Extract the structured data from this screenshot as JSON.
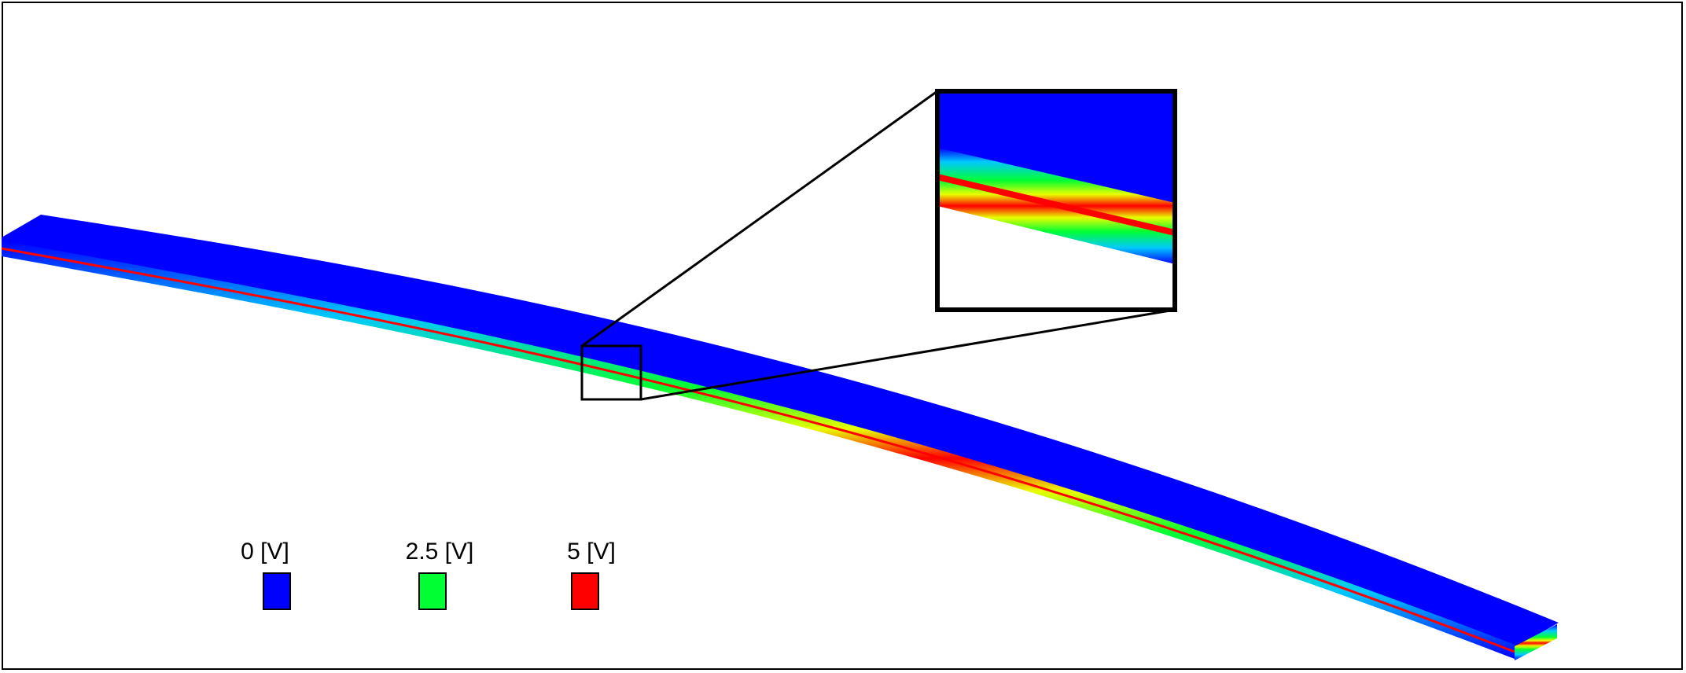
{
  "legend": {
    "items": [
      {
        "label": "0 [V]",
        "color": "#0000ff"
      },
      {
        "label": "2.5 [V]",
        "color": "#00ff33"
      },
      {
        "label": "5 [V]",
        "color": "#ff0000"
      }
    ]
  },
  "colors": {
    "beam_top": "#0000ff",
    "cyan": "#00c8ff",
    "green": "#00ff33",
    "yellow": "#e8ff00",
    "red": "#ff0000",
    "outline": "#000000"
  }
}
